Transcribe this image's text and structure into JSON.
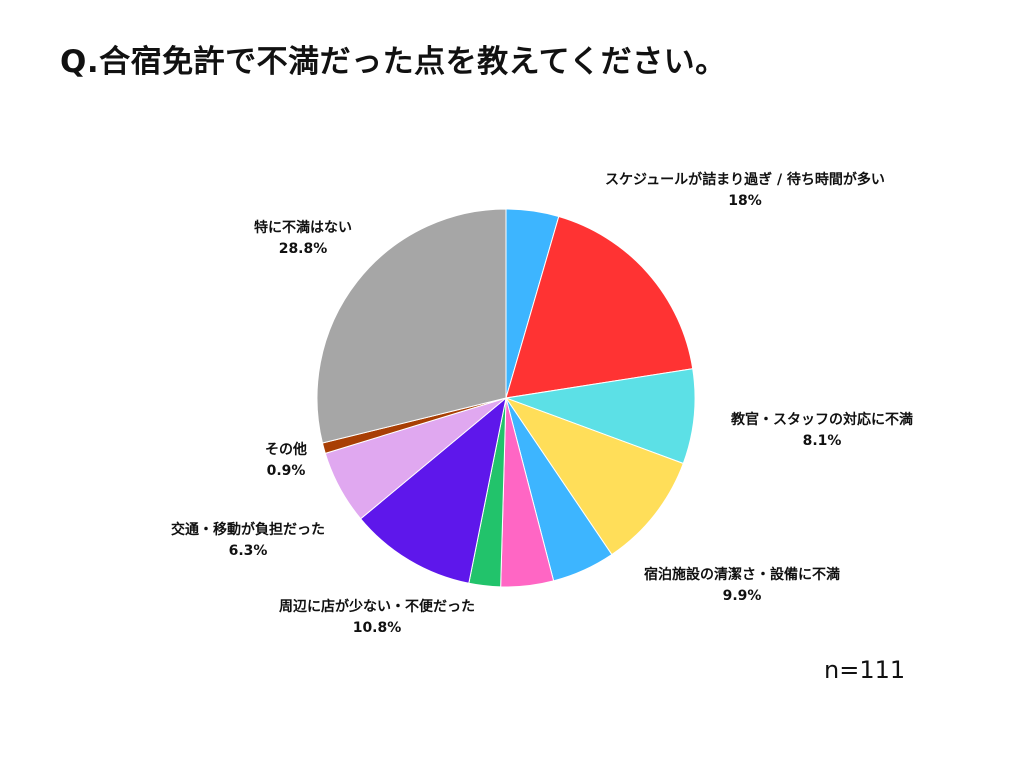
{
  "title": "Q.合宿免許で不満だった点を教えてください。",
  "sample_size": "n=111",
  "chart_data": {
    "type": "pie",
    "title": "Q.合宿免許で不満だった点を教えてください。",
    "start_angle_deg": 0,
    "direction": "clockwise",
    "slices": [
      {
        "label": "",
        "value": 4.5,
        "value_label": "",
        "color": "#3db5ff"
      },
      {
        "label": "スケジュールが詰まり過ぎ / 待ち時間が多い",
        "value": 18.0,
        "value_label": "18%",
        "color": "#ff3333"
      },
      {
        "label": "教官・スタッフの対応に不満",
        "value": 8.1,
        "value_label": "8.1%",
        "color": "#5ce0e6"
      },
      {
        "label": "宿泊施設の清潔さ・設備に不満",
        "value": 9.9,
        "value_label": "9.9%",
        "color": "#ffde59"
      },
      {
        "label": "",
        "value": 5.4,
        "value_label": "",
        "color": "#3db5ff"
      },
      {
        "label": "",
        "value": 4.5,
        "value_label": "",
        "color": "#ff66c4"
      },
      {
        "label": "",
        "value": 2.7,
        "value_label": "",
        "color": "#22c36b"
      },
      {
        "label": "周辺に店が少ない・不便だった",
        "value": 10.8,
        "value_label": "10.8%",
        "color": "#5e17eb"
      },
      {
        "label": "交通・移動が負担だった",
        "value": 6.3,
        "value_label": "6.3%",
        "color": "#e0a8f0"
      },
      {
        "label": "その他",
        "value": 0.9,
        "value_label": "0.9%",
        "color": "#a83f05"
      },
      {
        "label": "特に不満はない",
        "value": 28.8,
        "value_label": "28.8%",
        "color": "#a6a6a6"
      }
    ]
  }
}
